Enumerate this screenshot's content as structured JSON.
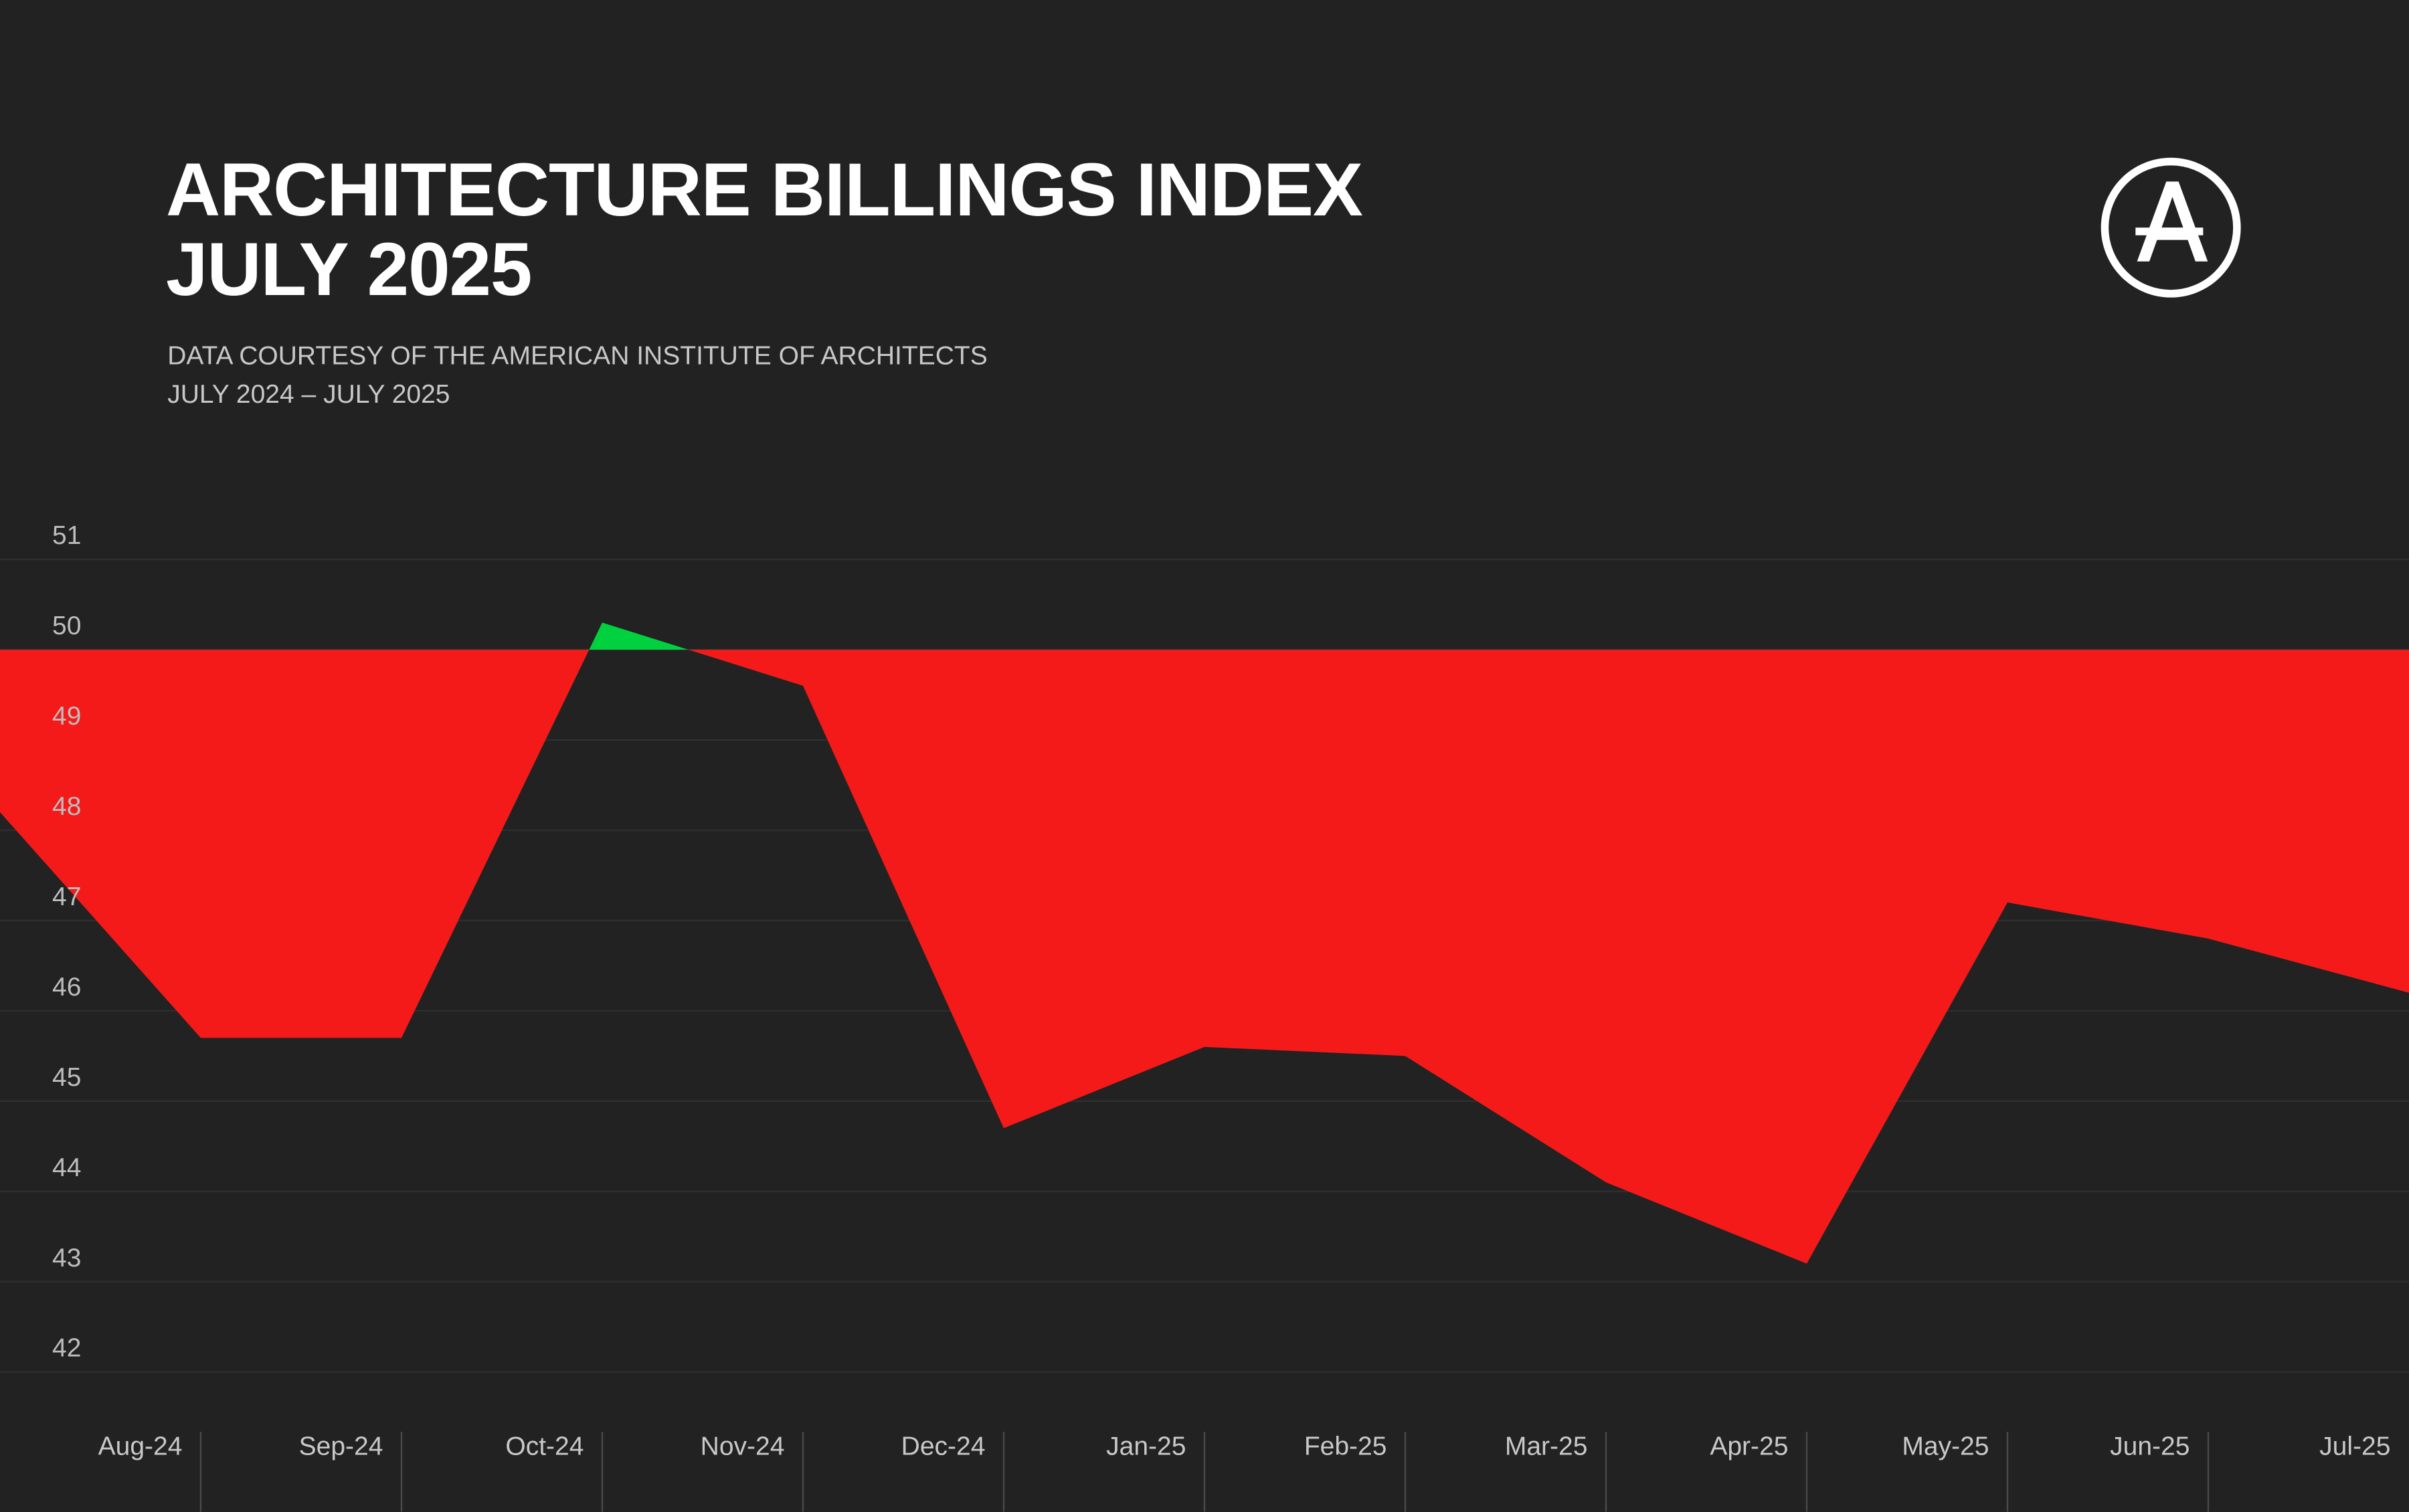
{
  "chart_data": {
    "type": "area",
    "title": [
      "ARCHITECTURE BILLINGS INDEX",
      "JULY 2025"
    ],
    "subtitle": [
      "DATA COURTESY OF THE AMERICAN INSTITUTE OF ARCHITECTS",
      "JULY 2024 – JULY 2025"
    ],
    "categories": [
      null,
      "Aug-24",
      "Sep-24",
      "Oct-24",
      "Nov-24",
      "Dec-24",
      "Jan-25",
      "Feb-25",
      "Mar-25",
      "Apr-25",
      "May-25",
      "Jun-25",
      "Jul-25"
    ],
    "values": [
      48.2,
      45.7,
      45.7,
      50.3,
      49.6,
      44.7,
      45.6,
      45.5,
      44.1,
      43.2,
      47.2,
      46.8,
      46.2
    ],
    "baseline": 50,
    "color_below": "#f41a1a",
    "color_above": "#00d13e",
    "ylim": [
      42,
      51
    ],
    "yticks": [
      42,
      43,
      44,
      45,
      46,
      47,
      48,
      49,
      50,
      51
    ],
    "grid": true
  }
}
